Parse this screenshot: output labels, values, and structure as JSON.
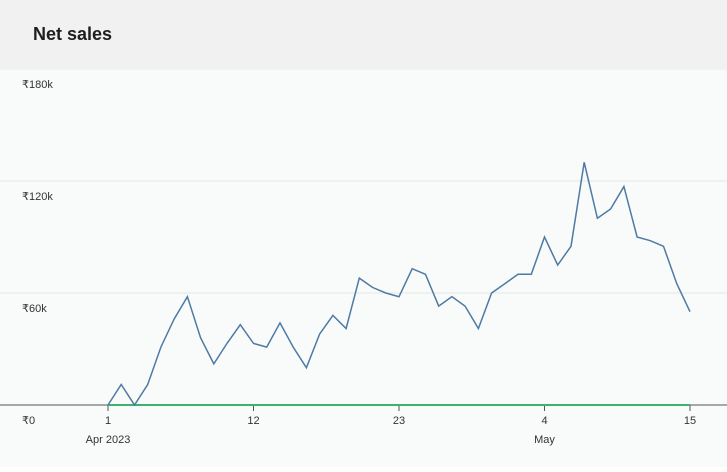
{
  "chart_data": {
    "type": "line",
    "title": "Net sales",
    "x": [
      "2023-04-01",
      "2023-04-02",
      "2023-04-03",
      "2023-04-04",
      "2023-04-05",
      "2023-04-06",
      "2023-04-07",
      "2023-04-08",
      "2023-04-09",
      "2023-04-10",
      "2023-04-11",
      "2023-04-12",
      "2023-04-13",
      "2023-04-14",
      "2023-04-15",
      "2023-04-16",
      "2023-04-17",
      "2023-04-18",
      "2023-04-19",
      "2023-04-20",
      "2023-04-21",
      "2023-04-22",
      "2023-04-23",
      "2023-04-24",
      "2023-04-25",
      "2023-04-26",
      "2023-04-27",
      "2023-04-28",
      "2023-04-29",
      "2023-04-30",
      "2023-05-01",
      "2023-05-02",
      "2023-05-03",
      "2023-05-04",
      "2023-05-05",
      "2023-05-06",
      "2023-05-07",
      "2023-05-08",
      "2023-05-09",
      "2023-05-10",
      "2023-05-11",
      "2023-05-12",
      "2023-05-13",
      "2023-05-14",
      "2023-05-15"
    ],
    "series": [
      {
        "color": "#4e7aa3",
        "values": [
          0,
          11000,
          0,
          11000,
          31000,
          46000,
          58000,
          36000,
          22000,
          33000,
          43000,
          33000,
          31000,
          44000,
          31000,
          20000,
          38000,
          48000,
          41000,
          68000,
          63000,
          60000,
          58000,
          73000,
          70000,
          53000,
          58000,
          53000,
          41000,
          60000,
          65000,
          70000,
          70000,
          90000,
          75000,
          85000,
          130000,
          100000,
          105000,
          117000,
          90000,
          88000,
          85000,
          65000,
          50000
        ]
      },
      {
        "color": "#3bb273",
        "values": [
          0,
          0,
          0,
          0,
          0,
          0,
          0,
          0,
          0,
          0,
          0,
          0,
          0,
          0,
          0,
          0,
          0,
          0,
          0,
          0,
          0,
          0,
          0,
          0,
          0,
          0,
          0,
          0,
          0,
          0,
          0,
          0,
          0,
          0,
          0,
          0,
          0,
          0,
          0,
          0,
          0,
          0,
          0,
          0,
          0
        ]
      }
    ],
    "xlim": [
      "2023-04-01",
      "2023-05-15"
    ],
    "xticks": [
      {
        "value": "2023-04-01",
        "label": "1",
        "group_label": "Apr 2023"
      },
      {
        "value": "2023-04-12",
        "label": "12"
      },
      {
        "value": "2023-04-23",
        "label": "23"
      },
      {
        "value": "2023-05-04",
        "label": "4",
        "group_label": "May"
      },
      {
        "value": "2023-05-15",
        "label": "15"
      }
    ],
    "ylim": [
      0,
      180000
    ],
    "yticks": [
      {
        "value": 0,
        "label": "₹0"
      },
      {
        "value": 60000,
        "label": "₹60k"
      },
      {
        "value": 120000,
        "label": "₹120k"
      },
      {
        "value": 180000,
        "label": "₹180k"
      }
    ],
    "grid": true
  }
}
